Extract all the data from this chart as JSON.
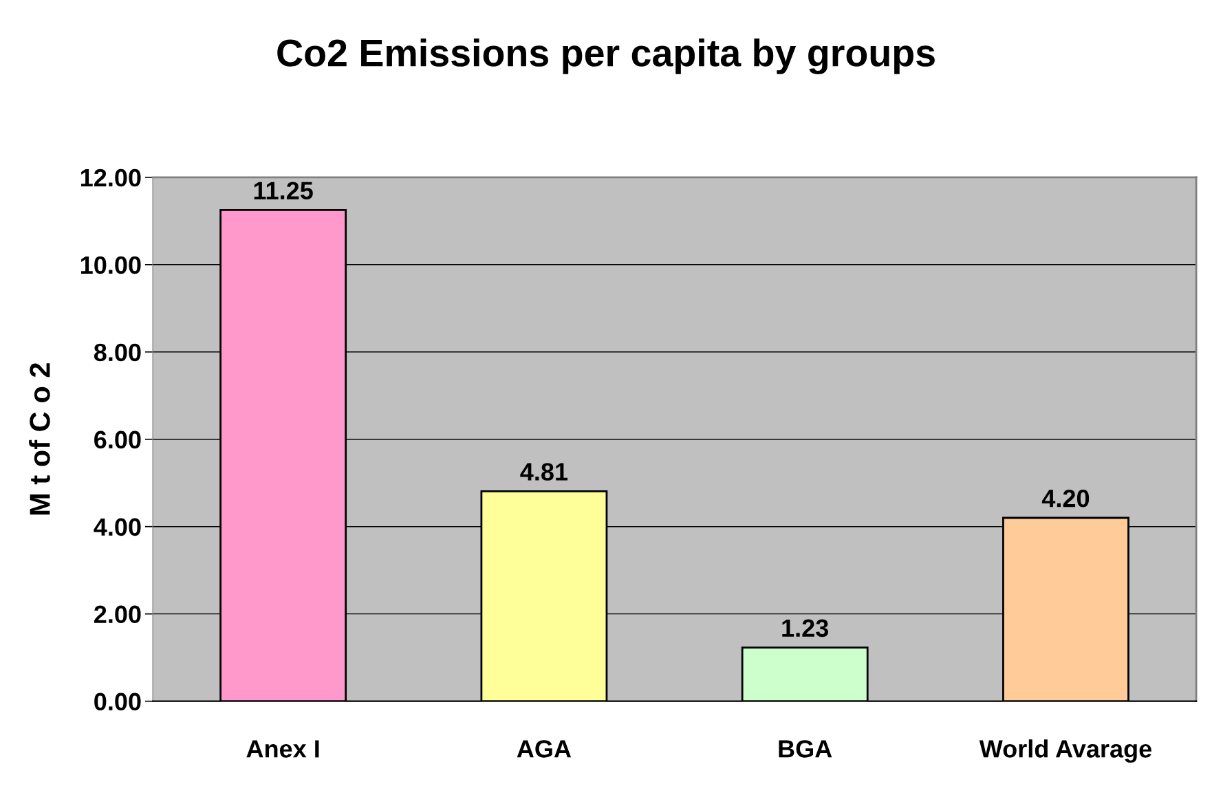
{
  "chart_data": {
    "type": "bar",
    "title": "Co2 Emissions per capita by groups",
    "ylabel": "M t of C o 2",
    "categories": [
      "Anex I",
      "AGA",
      "BGA",
      "World Avarage"
    ],
    "values": [
      11.25,
      4.81,
      1.23,
      4.2
    ],
    "value_labels": [
      "11.25",
      "4.81",
      "1.23",
      "4.20"
    ],
    "colors": [
      "#ff99cc",
      "#ffff99",
      "#ccffcc",
      "#ffcc99"
    ],
    "ylim": [
      0,
      12
    ],
    "yticks": [
      {
        "value": 0,
        "label": "0.00"
      },
      {
        "value": 2,
        "label": "2.00"
      },
      {
        "value": 4,
        "label": "4.00"
      },
      {
        "value": 6,
        "label": "6.00"
      },
      {
        "value": 8,
        "label": "8.00"
      },
      {
        "value": 10,
        "label": "10.00"
      },
      {
        "value": 12,
        "label": "12.00"
      }
    ],
    "grid": "y",
    "legend": false
  }
}
